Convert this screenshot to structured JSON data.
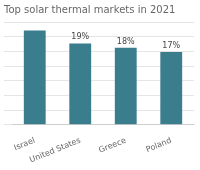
{
  "chart_data": {
    "type": "bar",
    "title": "Top solar thermal markets in 2021",
    "categories": [
      "Israel",
      "United States",
      "Greece",
      "Poland"
    ],
    "values": [
      22,
      19,
      18,
      17
    ],
    "value_labels": [
      null,
      "19%",
      "18%",
      "17%"
    ],
    "data_labels": true,
    "color": "#3a7d8c",
    "ylim": [
      0,
      24
    ],
    "yticks": [
      0,
      3.4285714285714284,
      6.857142857142857,
      10.285714285714286,
      13.714285714285714,
      17.142857142857142,
      20.571428571428573,
      24
    ],
    "grid": true,
    "tick_labels": "x"
  }
}
